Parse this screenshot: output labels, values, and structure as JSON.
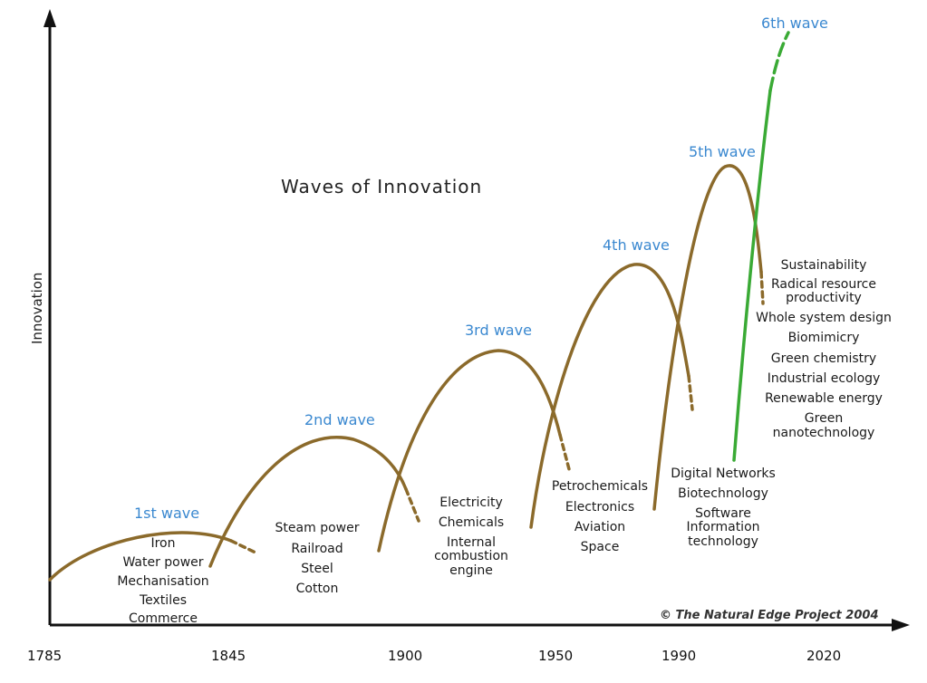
{
  "title": "Waves of Innovation",
  "y_axis_label": "Innovation",
  "credit": "© The Natural Edge Project 2004",
  "x_ticks": [
    "1785",
    "1845",
    "1900",
    "1950",
    "1990",
    "2020"
  ],
  "colors": {
    "wave": "#8b6a2b",
    "sixth_wave": "#3aaa35",
    "label": "#3a88d0",
    "axis": "#111111"
  },
  "waves": [
    {
      "label": "1st wave",
      "technologies": [
        "Iron",
        "Water power",
        "Mechanisation",
        "Textiles",
        "Commerce"
      ]
    },
    {
      "label": "2nd wave",
      "technologies": [
        "Steam power",
        "Railroad",
        "Steel",
        "Cotton"
      ]
    },
    {
      "label": "3rd wave",
      "technologies": [
        "Electricity",
        "Chemicals",
        "Internal",
        "combustion",
        "engine"
      ]
    },
    {
      "label": "4th wave",
      "technologies": [
        "Petrochemicals",
        "Electronics",
        "Aviation",
        "Space"
      ]
    },
    {
      "label": "5th wave",
      "technologies": [
        "Digital Networks",
        "Biotechnology",
        "Software",
        "Information",
        "technology"
      ]
    },
    {
      "label": "6th wave",
      "technologies": [
        "Sustainability",
        "Radical resource",
        "productivity",
        "Whole system design",
        "Biomimicry",
        "Green chemistry",
        "Industrial ecology",
        "Renewable energy",
        "Green",
        "nanotechnology"
      ]
    }
  ]
}
